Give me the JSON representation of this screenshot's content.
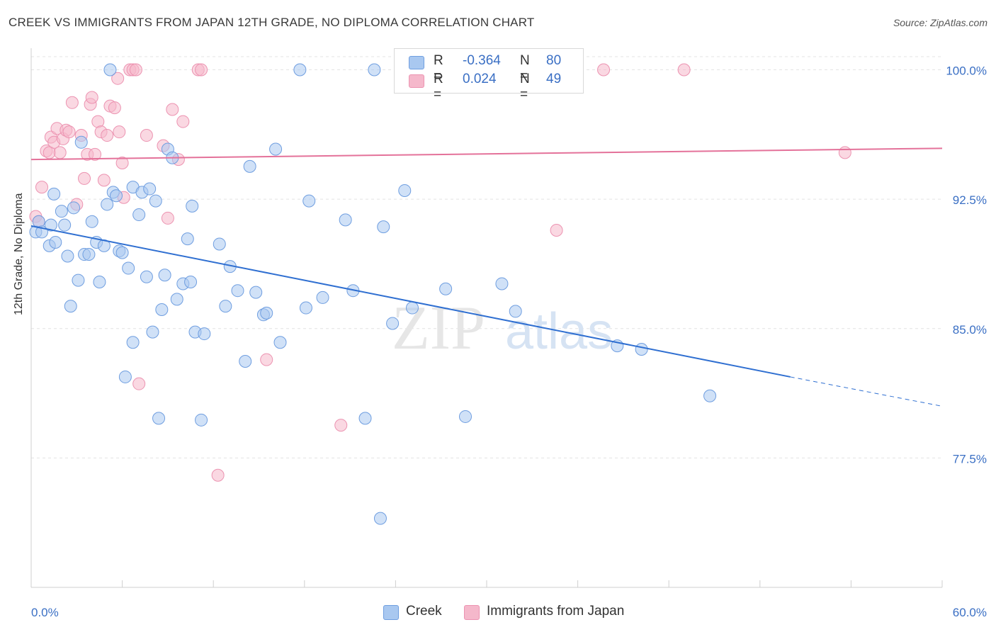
{
  "title": "CREEK VS IMMIGRANTS FROM JAPAN 12TH GRADE, NO DIPLOMA CORRELATION CHART",
  "source": "Source: ZipAtlas.com",
  "watermark": {
    "zip": "ZIP",
    "atlas": "atlas"
  },
  "legend": {
    "rows": [
      {
        "r_label": "R =",
        "r_value": "-0.364",
        "n_label": "N =",
        "n_value": "80"
      },
      {
        "r_label": "R =",
        "r_value": "0.024",
        "n_label": "N =",
        "n_value": "49"
      }
    ]
  },
  "bottom_legend": {
    "creek": "Creek",
    "japan": "Immigrants from Japan"
  },
  "colors": {
    "creek_fill": "#a9c8f0",
    "creek_stroke": "#6f9ee0",
    "creek_line": "#2f6fd1",
    "japan_fill": "#f5b8cb",
    "japan_stroke": "#ec93b1",
    "japan_line": "#e4729a",
    "axis_text": "#3a6fc4",
    "grid": "#e3e3e3"
  },
  "chart_data": {
    "type": "scatter",
    "title": "CREEK VS IMMIGRANTS FROM JAPAN 12TH GRADE, NO DIPLOMA CORRELATION CHART",
    "xlabel": "",
    "ylabel": "12th Grade, No Diploma",
    "xlim": [
      0,
      60
    ],
    "ylim": [
      70,
      101.5
    ],
    "x_tick_labels": [
      "0.0%",
      "60.0%"
    ],
    "y_ticks": [
      77.5,
      85.0,
      92.5,
      100.0
    ],
    "y_tick_labels": [
      "77.5%",
      "85.0%",
      "92.5%",
      "100.0%"
    ],
    "grid": true,
    "legend_position": "top-center",
    "series": [
      {
        "name": "Creek",
        "points": [
          [
            0.3,
            90.6
          ],
          [
            0.5,
            91.2
          ],
          [
            0.7,
            90.6
          ],
          [
            1.2,
            89.8
          ],
          [
            1.3,
            91.0
          ],
          [
            1.5,
            92.8
          ],
          [
            1.6,
            90.0
          ],
          [
            2.0,
            91.8
          ],
          [
            2.2,
            91.0
          ],
          [
            2.4,
            89.2
          ],
          [
            2.6,
            86.3
          ],
          [
            2.8,
            92.0
          ],
          [
            3.1,
            87.8
          ],
          [
            3.3,
            95.8
          ],
          [
            3.5,
            89.3
          ],
          [
            3.8,
            89.3
          ],
          [
            4.0,
            91.2
          ],
          [
            4.3,
            90.0
          ],
          [
            4.5,
            87.7
          ],
          [
            4.8,
            89.8
          ],
          [
            5.0,
            92.2
          ],
          [
            5.2,
            100.0
          ],
          [
            5.4,
            92.9
          ],
          [
            5.6,
            92.7
          ],
          [
            5.8,
            89.5
          ],
          [
            6.0,
            89.4
          ],
          [
            6.2,
            82.2
          ],
          [
            6.4,
            88.5
          ],
          [
            6.7,
            84.2
          ],
          [
            6.7,
            93.2
          ],
          [
            7.1,
            91.6
          ],
          [
            7.3,
            92.9
          ],
          [
            7.6,
            88.0
          ],
          [
            7.8,
            93.1
          ],
          [
            8.0,
            84.8
          ],
          [
            8.2,
            92.4
          ],
          [
            8.4,
            79.8
          ],
          [
            8.6,
            86.1
          ],
          [
            8.8,
            88.1
          ],
          [
            9.0,
            95.4
          ],
          [
            9.3,
            94.9
          ],
          [
            9.6,
            86.7
          ],
          [
            10.0,
            87.6
          ],
          [
            10.3,
            90.2
          ],
          [
            10.5,
            87.7
          ],
          [
            10.6,
            92.1
          ],
          [
            10.8,
            84.8
          ],
          [
            11.2,
            79.7
          ],
          [
            11.4,
            84.7
          ],
          [
            12.4,
            89.9
          ],
          [
            12.8,
            86.3
          ],
          [
            13.1,
            88.6
          ],
          [
            13.6,
            87.2
          ],
          [
            14.1,
            83.1
          ],
          [
            14.4,
            94.4
          ],
          [
            14.8,
            87.1
          ],
          [
            15.3,
            85.8
          ],
          [
            15.5,
            85.9
          ],
          [
            16.1,
            95.4
          ],
          [
            16.4,
            84.2
          ],
          [
            17.7,
            100.0
          ],
          [
            18.1,
            86.2
          ],
          [
            18.3,
            92.4
          ],
          [
            19.2,
            86.8
          ],
          [
            20.7,
            91.3
          ],
          [
            21.2,
            87.2
          ],
          [
            22.0,
            79.8
          ],
          [
            22.6,
            100.0
          ],
          [
            23.0,
            74.0
          ],
          [
            23.2,
            90.9
          ],
          [
            23.8,
            85.3
          ],
          [
            24.6,
            93.0
          ],
          [
            25.1,
            86.2
          ],
          [
            27.3,
            87.3
          ],
          [
            28.6,
            79.9
          ],
          [
            31.0,
            87.6
          ],
          [
            31.9,
            86.0
          ],
          [
            38.6,
            84.0
          ],
          [
            40.2,
            83.8
          ],
          [
            44.7,
            81.1
          ]
        ],
        "trend": {
          "x": [
            0.0,
            50.0
          ],
          "y": [
            90.95,
            82.2
          ],
          "dashed_extension_to_x": 60.0,
          "dashed_end_y": 80.5
        }
      },
      {
        "name": "Immigrants from Japan",
        "points": [
          [
            0.3,
            91.5
          ],
          [
            0.5,
            91.2
          ],
          [
            0.7,
            93.2
          ],
          [
            1.0,
            95.3
          ],
          [
            1.2,
            95.2
          ],
          [
            1.3,
            96.1
          ],
          [
            1.5,
            95.8
          ],
          [
            1.7,
            96.6
          ],
          [
            1.9,
            95.2
          ],
          [
            2.1,
            96.0
          ],
          [
            2.3,
            96.5
          ],
          [
            2.5,
            96.4
          ],
          [
            2.7,
            98.1
          ],
          [
            3.0,
            92.2
          ],
          [
            3.3,
            96.2
          ],
          [
            3.5,
            93.7
          ],
          [
            3.7,
            95.1
          ],
          [
            3.9,
            98.0
          ],
          [
            4.0,
            98.4
          ],
          [
            4.2,
            95.1
          ],
          [
            4.4,
            97.0
          ],
          [
            4.6,
            96.4
          ],
          [
            4.8,
            93.6
          ],
          [
            5.0,
            96.2
          ],
          [
            5.2,
            97.9
          ],
          [
            5.5,
            97.8
          ],
          [
            5.7,
            99.5
          ],
          [
            5.8,
            96.4
          ],
          [
            6.0,
            94.6
          ],
          [
            6.1,
            92.6
          ],
          [
            6.5,
            100.0
          ],
          [
            6.7,
            100.0
          ],
          [
            6.9,
            100.0
          ],
          [
            7.1,
            81.8
          ],
          [
            7.6,
            96.2
          ],
          [
            8.7,
            95.6
          ],
          [
            9.0,
            91.4
          ],
          [
            9.3,
            97.7
          ],
          [
            9.7,
            94.8
          ],
          [
            10.0,
            97.0
          ],
          [
            11.0,
            100.0
          ],
          [
            11.2,
            100.0
          ],
          [
            12.3,
            76.5
          ],
          [
            15.5,
            83.2
          ],
          [
            20.4,
            79.4
          ],
          [
            34.6,
            90.7
          ],
          [
            37.7,
            100.0
          ],
          [
            43.0,
            100.0
          ],
          [
            53.6,
            95.2
          ]
        ],
        "trend": {
          "x": [
            0.0,
            60.0
          ],
          "y": [
            94.8,
            95.45
          ]
        }
      }
    ]
  }
}
